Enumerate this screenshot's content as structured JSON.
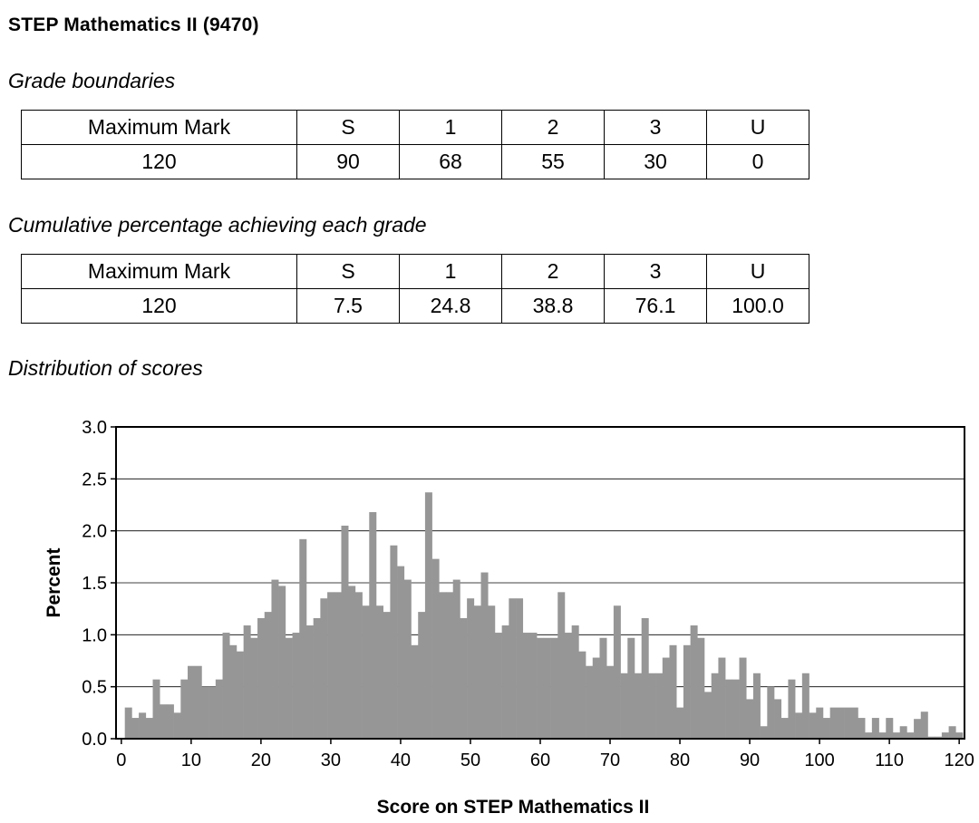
{
  "title": "STEP Mathematics II (9470)",
  "grade_boundaries": {
    "heading": "Grade boundaries",
    "header": [
      "Maximum Mark",
      "S",
      "1",
      "2",
      "3",
      "U"
    ],
    "row": [
      "120",
      "90",
      "68",
      "55",
      "30",
      "0"
    ]
  },
  "cumulative": {
    "heading": "Cumulative percentage achieving each grade",
    "header": [
      "Maximum Mark",
      "S",
      "1",
      "2",
      "3",
      "U"
    ],
    "row": [
      "120",
      "7.5",
      "24.8",
      "38.8",
      "76.1",
      "100.0"
    ]
  },
  "distribution_heading": "Distribution of scores",
  "bar_color": "#969696",
  "chart_data": {
    "type": "bar",
    "xlabel": "Score on STEP Mathematics II",
    "ylabel": "Percent",
    "ylim": [
      0,
      3.0
    ],
    "xlim": [
      0,
      120
    ],
    "yticks": [
      "0.0",
      "0.5",
      "1.0",
      "1.5",
      "2.0",
      "2.5",
      "3.0"
    ],
    "xticks": [
      "0",
      "10",
      "20",
      "30",
      "40",
      "50",
      "60",
      "70",
      "80",
      "90",
      "100",
      "110",
      "120"
    ],
    "grid": "horizontal",
    "x": [
      0,
      1,
      2,
      3,
      4,
      5,
      6,
      7,
      8,
      9,
      10,
      11,
      12,
      13,
      14,
      15,
      16,
      17,
      18,
      19,
      20,
      21,
      22,
      23,
      24,
      25,
      26,
      27,
      28,
      29,
      30,
      31,
      32,
      33,
      34,
      35,
      36,
      37,
      38,
      39,
      40,
      41,
      42,
      43,
      44,
      45,
      46,
      47,
      48,
      49,
      50,
      51,
      52,
      53,
      54,
      55,
      56,
      57,
      58,
      59,
      60,
      61,
      62,
      63,
      64,
      65,
      66,
      67,
      68,
      69,
      70,
      71,
      72,
      73,
      74,
      75,
      76,
      77,
      78,
      79,
      80,
      81,
      82,
      83,
      84,
      85,
      86,
      87,
      88,
      89,
      90,
      91,
      92,
      93,
      94,
      95,
      96,
      97,
      98,
      99,
      100,
      101,
      102,
      103,
      104,
      105,
      106,
      107,
      108,
      109,
      110,
      111,
      112,
      113,
      114,
      115,
      116,
      117,
      118,
      119,
      120
    ],
    "values": [
      0.0,
      0.3,
      0.2,
      0.25,
      0.2,
      0.57,
      0.33,
      0.33,
      0.25,
      0.57,
      0.7,
      0.7,
      0.5,
      0.5,
      0.57,
      1.02,
      0.9,
      0.84,
      1.09,
      0.97,
      1.16,
      1.22,
      1.53,
      1.47,
      0.97,
      1.02,
      1.92,
      1.09,
      1.16,
      1.35,
      1.41,
      1.41,
      2.05,
      1.47,
      1.41,
      1.28,
      2.18,
      1.28,
      1.22,
      1.86,
      1.66,
      1.53,
      0.9,
      1.22,
      2.37,
      1.73,
      1.41,
      1.41,
      1.53,
      1.16,
      1.35,
      1.28,
      1.6,
      1.28,
      1.02,
      1.09,
      1.35,
      1.35,
      1.02,
      1.02,
      0.97,
      0.97,
      0.97,
      1.41,
      1.02,
      1.09,
      0.84,
      0.7,
      0.78,
      0.97,
      0.7,
      1.28,
      0.63,
      0.97,
      0.63,
      1.16,
      0.63,
      0.63,
      0.78,
      0.9,
      0.3,
      0.9,
      1.09,
      0.97,
      0.45,
      0.63,
      0.78,
      0.57,
      0.57,
      0.78,
      0.38,
      0.63,
      0.12,
      0.5,
      0.38,
      0.2,
      0.57,
      0.25,
      0.63,
      0.25,
      0.3,
      0.2,
      0.3,
      0.3,
      0.3,
      0.3,
      0.2,
      0.06,
      0.2,
      0.06,
      0.2,
      0.06,
      0.12,
      0.06,
      0.19,
      0.26,
      0.02,
      0.02,
      0.06,
      0.12,
      0.06
    ]
  }
}
